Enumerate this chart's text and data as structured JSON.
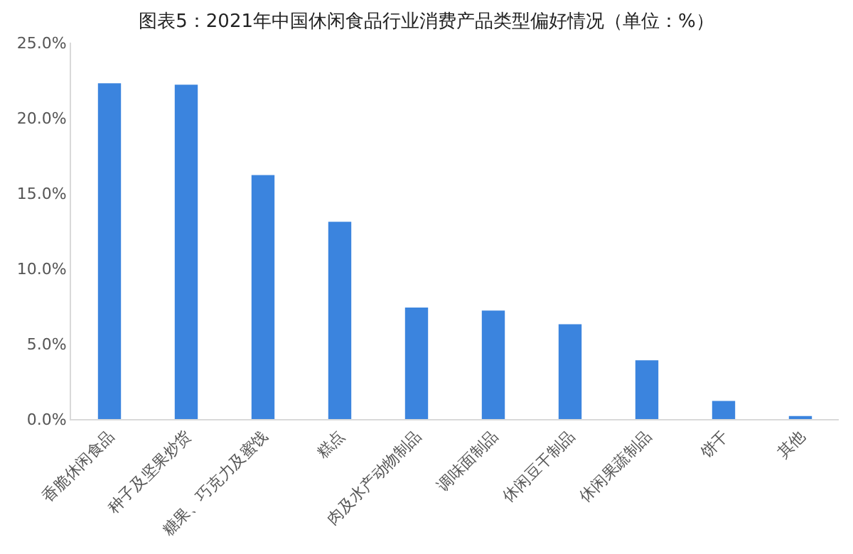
{
  "chart_data": {
    "type": "bar",
    "title": "图表5：2021年中国休闲食品行业消费产品类型偏好情况（单位：%）",
    "categories": [
      "香脆休闲食品",
      "种子及坚果炒货",
      "糖果、巧克力及蜜饯",
      "糕点",
      "肉及水产动物制品",
      "调味面制品",
      "休闲豆干制品",
      "休闲果蔬制品",
      "饼干",
      "其他"
    ],
    "values": [
      22.3,
      22.2,
      16.2,
      13.1,
      7.4,
      7.2,
      6.3,
      3.9,
      1.2,
      0.2
    ],
    "color": "#3b84de",
    "ylim": [
      0,
      25
    ],
    "yticks": [
      {
        "value": 0,
        "label": "0.0%"
      },
      {
        "value": 5,
        "label": "5.0%"
      },
      {
        "value": 10,
        "label": "10.0%"
      },
      {
        "value": 15,
        "label": "15.0%"
      },
      {
        "value": 20,
        "label": "20.0%"
      },
      {
        "value": 25,
        "label": "25.0%"
      }
    ],
    "ylabel": null
  }
}
